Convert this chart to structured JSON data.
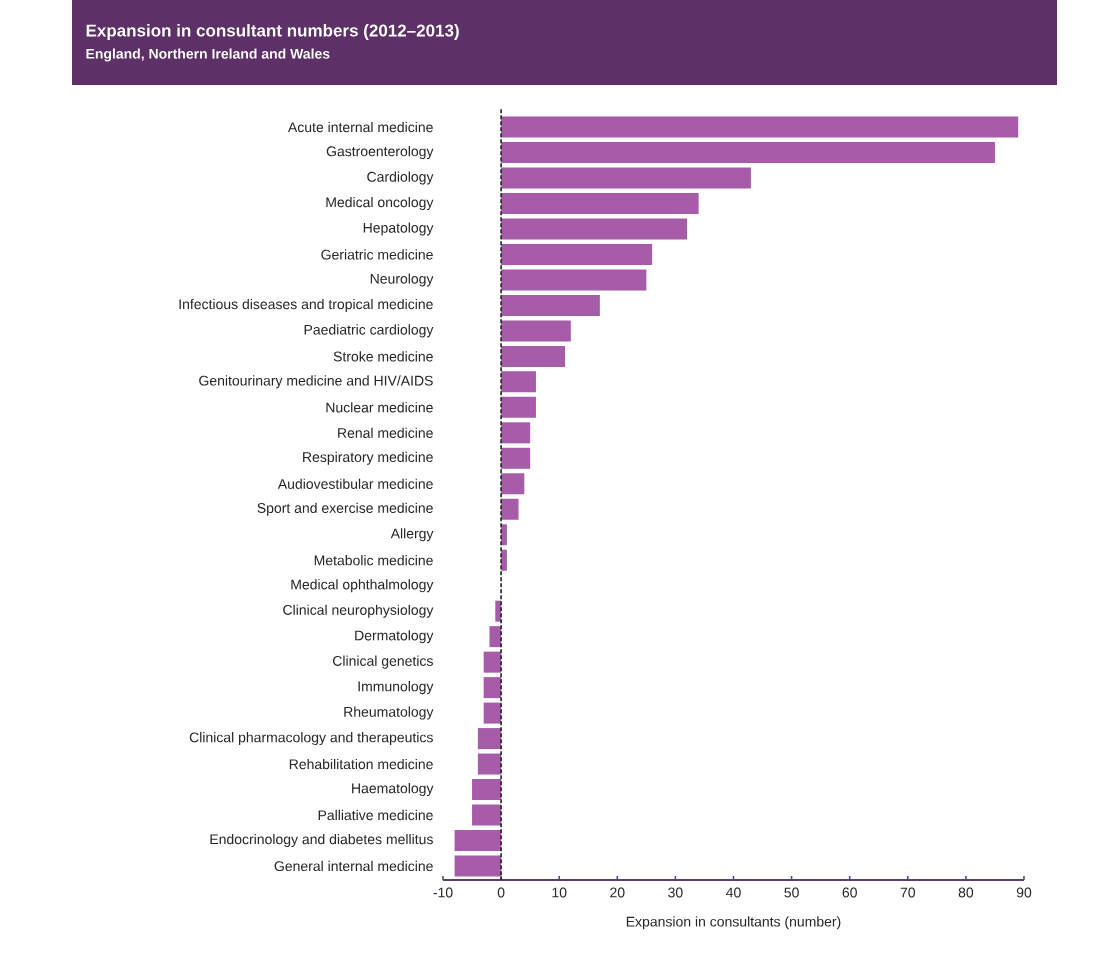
{
  "chart_data": {
    "type": "bar",
    "orientation": "horizontal",
    "title": "Expansion in consultant numbers (2012–2013)",
    "subtitle": "England, Northern Ireland and Wales",
    "xlabel": "Expansion in consultants (number)",
    "categories": [
      "Acute internal medicine",
      "Gastroenterology",
      "Cardiology",
      "Medical oncology",
      "Hepatology",
      "Geriatric medicine",
      "Neurology",
      "Infectious diseases and tropical medicine",
      "Paediatric cardiology",
      "Stroke medicine",
      "Genitourinary medicine and HIV/AIDS",
      "Nuclear medicine",
      "Renal medicine",
      "Respiratory medicine",
      "Audiovestibular medicine",
      "Sport and exercise medicine",
      "Allergy",
      "Metabolic medicine",
      "Medical ophthalmology",
      "Clinical neurophysiology",
      "Dermatology",
      "Clinical genetics",
      "Immunology",
      "Rheumatology",
      "Clinical pharmacology and therapeutics",
      "Rehabilitation medicine",
      "Haematology",
      "Palliative medicine",
      "Endocrinology and diabetes mellitus",
      "General internal medicine"
    ],
    "values": [
      89,
      85,
      43,
      34,
      32,
      26,
      25,
      17,
      12,
      11,
      6,
      6,
      5,
      5,
      4,
      3,
      1,
      1,
      0,
      -1,
      -2,
      -3,
      -3,
      -3,
      -4,
      -4,
      -5,
      -5,
      -8,
      -8
    ],
    "color": "#a65ca8",
    "xlim": [
      -10,
      90
    ],
    "xticks": [
      -10,
      0,
      10,
      20,
      30,
      40,
      50,
      60,
      70,
      80,
      90
    ],
    "ref_lines": [
      {
        "axis": "x",
        "value": 0,
        "color": "#222222",
        "line_style": "dashed"
      }
    ]
  }
}
